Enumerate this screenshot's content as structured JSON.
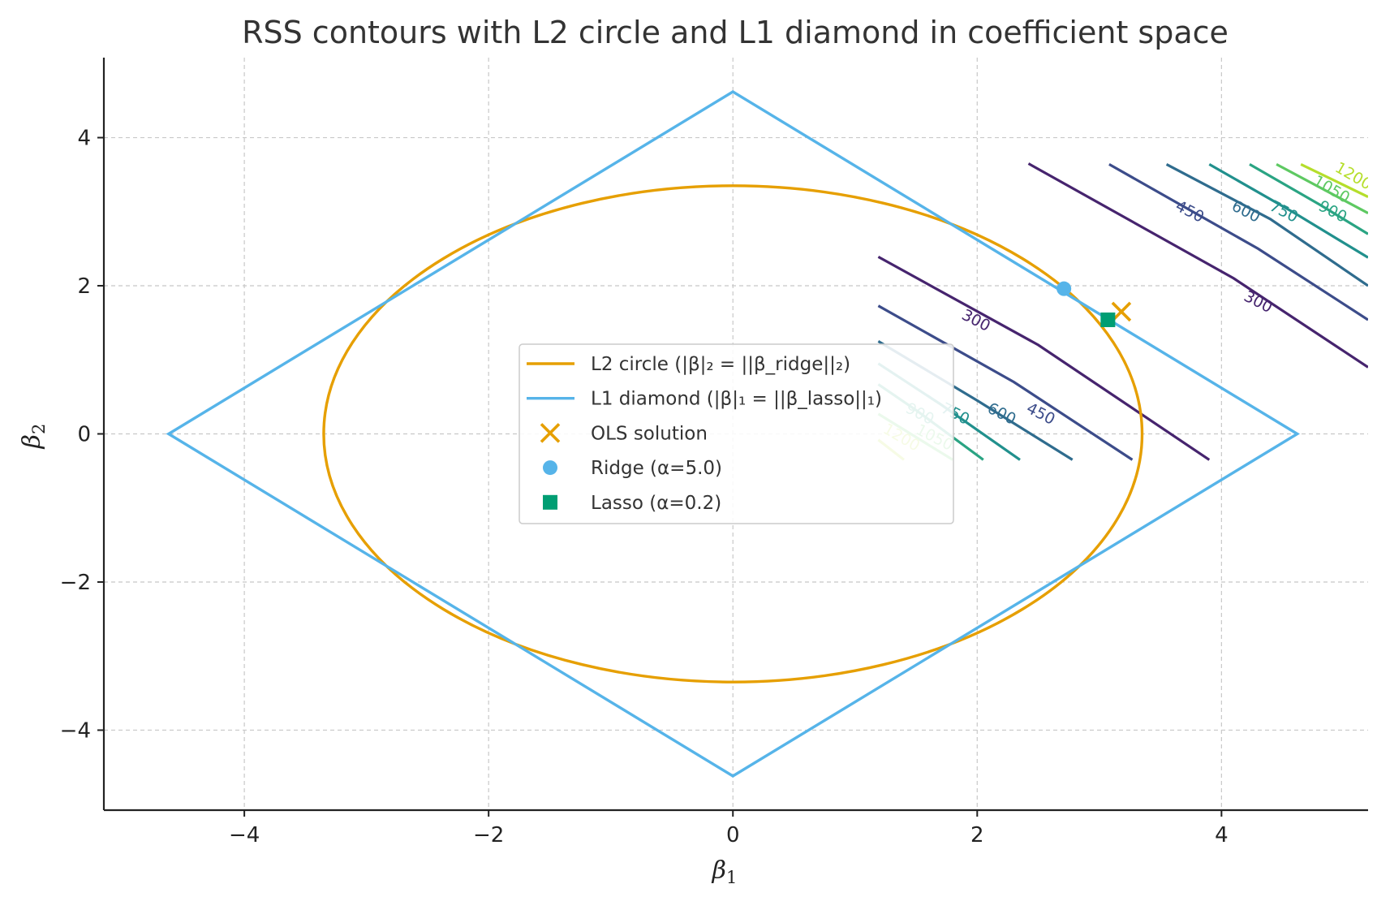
{
  "chart_data": {
    "type": "line",
    "title": "RSS contours with L2 circle and L1 diamond in coefficient space",
    "xlabel": "β",
    "xlabel_sub": "1",
    "ylabel": "β",
    "ylabel_sub": "2",
    "xlim": [
      -5.15,
      5.2
    ],
    "ylim": [
      -5.08,
      5.08
    ],
    "xticks": [
      -4,
      -2,
      0,
      2,
      4
    ],
    "yticks": [
      -4,
      -2,
      0,
      2,
      4
    ],
    "xtick_labels": [
      "−4",
      "−2",
      "0",
      "2",
      "4"
    ],
    "ytick_labels": [
      "−4",
      "−2",
      "0",
      "2",
      "4"
    ],
    "grid": true,
    "legend_position": "center",
    "colors": {
      "l2": "#E69F00",
      "l1": "#56B4E9",
      "ols": "#E69F00",
      "ridge": "#56B4E9",
      "lasso": "#009E73"
    },
    "l2_circle": {
      "radius": 3.35
    },
    "l1_diamond": {
      "radius": 4.62
    },
    "points": [
      {
        "name": "OLS solution",
        "x": 3.18,
        "y": 1.65,
        "marker": "x",
        "color": "#E69F00"
      },
      {
        "name": "Ridge (α=5.0)",
        "x": 2.71,
        "y": 1.96,
        "marker": "circle",
        "color": "#56B4E9"
      },
      {
        "name": "Lasso (α=0.2)",
        "x": 3.07,
        "y": 1.54,
        "marker": "square",
        "color": "#009E73"
      }
    ],
    "legend": [
      {
        "label": "L2 circle (|β|₂ = ||β_ridge||₂)",
        "kind": "line",
        "color": "#E69F00"
      },
      {
        "label": "L1 diamond (|β|₁ = ||β_lasso||₁)",
        "kind": "line",
        "color": "#56B4E9"
      },
      {
        "label": "OLS solution",
        "kind": "x",
        "color": "#E69F00"
      },
      {
        "label": "Ridge (α=5.0)",
        "kind": "circle",
        "color": "#56B4E9"
      },
      {
        "label": "Lasso (α=0.2)",
        "kind": "square",
        "color": "#009E73"
      }
    ],
    "contours": [
      {
        "level": "300",
        "color": "#46246e",
        "lines": [
          [
            [
              1.19,
              2.39
            ],
            [
              2.5,
              1.2
            ],
            [
              3.9,
              -0.35
            ]
          ],
          [
            [
              2.42,
              3.65
            ],
            [
              4.1,
              2.1
            ],
            [
              5.2,
              0.9
            ]
          ]
        ],
        "labels": [
          {
            "x": 1.99,
            "y": 1.53,
            "angle": 27
          },
          {
            "x": 4.3,
            "y": 1.78,
            "angle": 27
          }
        ]
      },
      {
        "level": "450",
        "color": "#3c4c8a",
        "lines": [
          [
            [
              1.19,
              1.73
            ],
            [
              2.3,
              0.7
            ],
            [
              3.27,
              -0.35
            ]
          ],
          [
            [
              3.08,
              3.64
            ],
            [
              4.3,
              2.5
            ],
            [
              5.2,
              1.54
            ]
          ]
        ],
        "labels": [
          {
            "x": 2.52,
            "y": 0.27,
            "angle": 27
          },
          {
            "x": 3.74,
            "y": 3.0,
            "angle": 27
          }
        ]
      },
      {
        "level": "600",
        "color": "#2f6c8e",
        "lines": [
          [
            [
              1.19,
              1.25
            ],
            [
              2.0,
              0.45
            ],
            [
              2.78,
              -0.35
            ]
          ],
          [
            [
              3.55,
              3.64
            ],
            [
              4.4,
              2.9
            ],
            [
              5.2,
              2.0
            ]
          ]
        ],
        "labels": [
          {
            "x": 2.2,
            "y": 0.27,
            "angle": 27
          },
          {
            "x": 4.2,
            "y": 3.0,
            "angle": 27
          }
        ]
      },
      {
        "level": "750",
        "color": "#21908d",
        "lines": [
          [
            [
              1.19,
              0.95
            ],
            [
              1.7,
              0.4
            ],
            [
              2.35,
              -0.35
            ]
          ],
          [
            [
              3.9,
              3.64
            ],
            [
              4.6,
              2.98
            ],
            [
              5.2,
              2.38
            ]
          ]
        ],
        "labels": [
          {
            "x": 1.82,
            "y": 0.27,
            "angle": 27
          },
          {
            "x": 4.51,
            "y": 3.0,
            "angle": 27
          }
        ]
      },
      {
        "level": "900",
        "color": "#2aa483",
        "lines": [
          [
            [
              1.19,
              0.67
            ],
            [
              1.5,
              0.32
            ],
            [
              2.05,
              -0.35
            ]
          ],
          [
            [
              4.23,
              3.64
            ],
            [
              4.8,
              3.1
            ],
            [
              5.2,
              2.7
            ]
          ]
        ],
        "labels": [
          {
            "x": 1.53,
            "y": 0.27,
            "angle": 27
          },
          {
            "x": 4.91,
            "y": 3.0,
            "angle": 27
          }
        ]
      },
      {
        "level": "1050",
        "color": "#5ec962",
        "lines": [
          [
            [
              1.19,
              0.27
            ],
            [
              1.8,
              -0.35
            ]
          ],
          [
            [
              4.45,
              3.64
            ],
            [
              5.2,
              2.98
            ]
          ]
        ],
        "labels": [
          {
            "x": 1.65,
            "y": -0.05,
            "angle": 27
          },
          {
            "x": 4.9,
            "y": 3.3,
            "angle": 30
          }
        ]
      },
      {
        "level": "1200",
        "color": "#b5de2b",
        "lines": [
          [
            [
              1.19,
              -0.08
            ],
            [
              1.4,
              -0.35
            ]
          ],
          [
            [
              4.65,
              3.64
            ],
            [
              5.2,
              3.2
            ]
          ]
        ],
        "labels": [
          {
            "x": 1.38,
            "y": -0.05,
            "angle": 30
          },
          {
            "x": 5.08,
            "y": 3.48,
            "angle": 30
          }
        ]
      }
    ]
  }
}
